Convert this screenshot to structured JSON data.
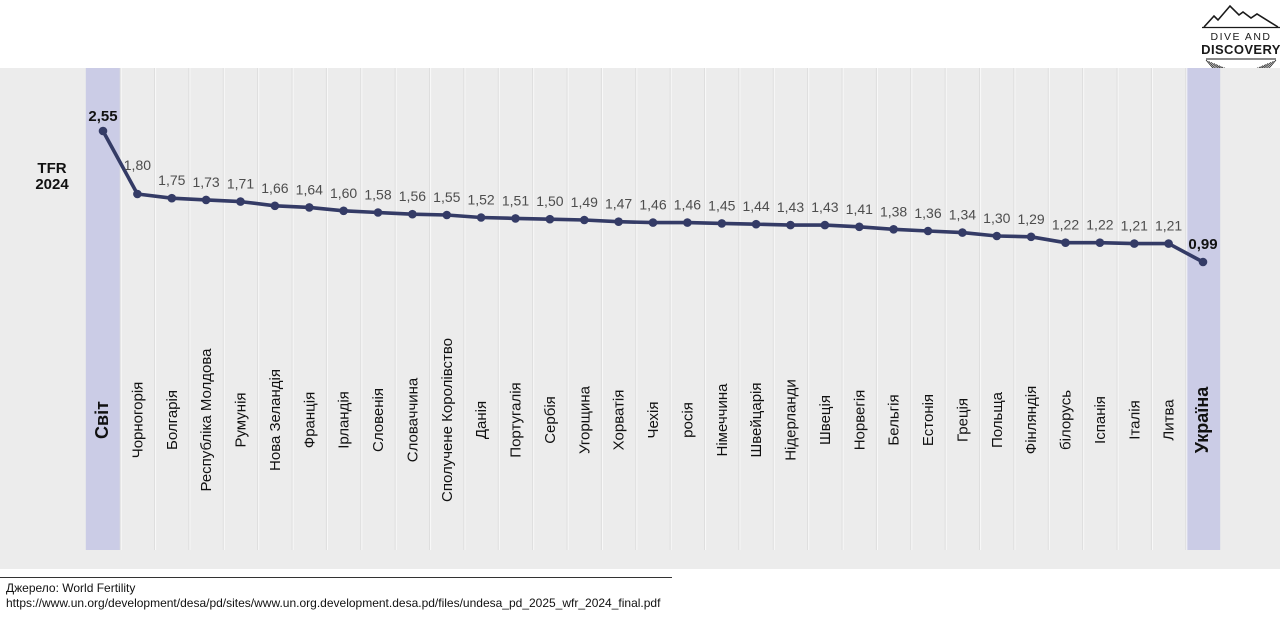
{
  "brand": {
    "line1": "DIVE AND",
    "line2": "DISCOVERY"
  },
  "axis_label": {
    "line1": "TFR",
    "line2": "2024"
  },
  "source": {
    "label": "Джерело: World Fertility",
    "url": "https://www.un.org/development/desa/pd/sites/www.un.org.development.desa.pd/files/undesa_pd_2025_wfr_2024_final.pdf"
  },
  "colors": {
    "line": "#343b66",
    "marker": "#343b66",
    "chart_bg": "#ececec",
    "highlight_band": "#cbcce6",
    "gridline": "#dcdcdc",
    "gridline_light": "#f9f9f9",
    "value_label": "#4d4d4d",
    "emphasis_label": "#111111",
    "category_label": "#111111"
  },
  "chart_data": {
    "type": "line",
    "title": "TFR 2024",
    "xlabel": "",
    "ylabel": "TFR 2024",
    "legend_position": "none",
    "grid": "vertical category separators",
    "markers": true,
    "categories": [
      "Світ",
      "Чорногорія",
      "Болгарія",
      "Республіка Молдова",
      "Румунія",
      "Нова Зеландія",
      "Франція",
      "Ірландія",
      "Словенія",
      "Словаччина",
      "Сполучене Королівство",
      "Данія",
      "Португалія",
      "Сербія",
      "Угорщина",
      "Хорватія",
      "Чехія",
      "росія",
      "Німеччина",
      "Швейцарія",
      "Нідерланди",
      "Швеція",
      "Норвегія",
      "Бельгія",
      "Естонія",
      "Греція",
      "Польща",
      "Фінляндія",
      "білорусь",
      "Іспанія",
      "Італія",
      "Литва",
      "Україна"
    ],
    "values": [
      2.55,
      1.8,
      1.75,
      1.73,
      1.71,
      1.66,
      1.64,
      1.6,
      1.58,
      1.56,
      1.55,
      1.52,
      1.51,
      1.5,
      1.49,
      1.47,
      1.46,
      1.46,
      1.45,
      1.44,
      1.43,
      1.43,
      1.41,
      1.38,
      1.36,
      1.34,
      1.3,
      1.29,
      1.22,
      1.22,
      1.21,
      1.21,
      0.99
    ],
    "value_labels": [
      "2,55",
      "1,80",
      "1,75",
      "1,73",
      "1,71",
      "1,66",
      "1,64",
      "1,60",
      "1,58",
      "1,56",
      "1,55",
      "1,52",
      "1,51",
      "1,50",
      "1,49",
      "1,47",
      "1,46",
      "1,46",
      "1,45",
      "1,44",
      "1,43",
      "1,43",
      "1,41",
      "1,38",
      "1,36",
      "1,34",
      "1,30",
      "1,29",
      "1,22",
      "1,22",
      "1,21",
      "1,21",
      "0,99"
    ],
    "emphasized_indices": [
      0,
      32
    ],
    "ylim_implied": [
      0.9,
      2.7
    ]
  }
}
